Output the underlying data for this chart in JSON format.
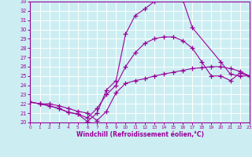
{
  "xlabel": "Windchill (Refroidissement éolien,°C)",
  "bg_color": "#cceef2",
  "line_color": "#990099",
  "grid_color": "#ffffff",
  "xlim": [
    0,
    23
  ],
  "ylim": [
    20,
    33
  ],
  "x_ticks": [
    0,
    1,
    2,
    3,
    4,
    5,
    6,
    7,
    8,
    9,
    10,
    11,
    12,
    13,
    14,
    15,
    16,
    17,
    18,
    19,
    20,
    21,
    22,
    23
  ],
  "y_ticks": [
    20,
    21,
    22,
    23,
    24,
    25,
    26,
    27,
    28,
    29,
    30,
    31,
    32,
    33
  ],
  "series": [
    {
      "x": [
        0,
        1,
        2,
        3,
        4,
        5,
        6,
        7,
        8,
        9,
        10,
        11,
        12,
        13,
        14,
        15,
        16,
        17,
        20,
        21,
        22,
        23
      ],
      "y": [
        22.2,
        22.0,
        21.8,
        21.5,
        21.1,
        20.9,
        20.1,
        21.0,
        23.5,
        24.5,
        29.5,
        31.5,
        32.2,
        33.0,
        33.3,
        33.5,
        33.2,
        30.2,
        26.5,
        25.2,
        25.0,
        25.0
      ]
    },
    {
      "x": [
        0,
        1,
        2,
        3,
        4,
        5,
        6,
        7,
        8,
        9,
        10,
        11,
        12,
        13,
        14,
        15,
        16,
        17,
        18,
        19,
        20,
        21,
        22,
        23
      ],
      "y": [
        22.2,
        22.0,
        21.8,
        21.5,
        21.1,
        20.9,
        20.5,
        21.5,
        23.0,
        24.0,
        26.0,
        27.5,
        28.5,
        29.0,
        29.2,
        29.2,
        28.8,
        28.0,
        26.5,
        25.0,
        25.0,
        24.5,
        25.3,
        25.0
      ]
    },
    {
      "x": [
        0,
        1,
        2,
        3,
        4,
        5,
        6,
        7,
        8,
        9,
        10,
        11,
        12,
        13,
        14,
        15,
        16,
        17,
        18,
        19,
        20,
        21,
        22,
        23
      ],
      "y": [
        22.2,
        22.0,
        22.0,
        21.8,
        21.5,
        21.2,
        21.0,
        20.2,
        21.2,
        23.2,
        24.2,
        24.5,
        24.7,
        25.0,
        25.2,
        25.4,
        25.6,
        25.8,
        25.9,
        26.0,
        26.0,
        25.8,
        25.5,
        25.0
      ]
    }
  ]
}
